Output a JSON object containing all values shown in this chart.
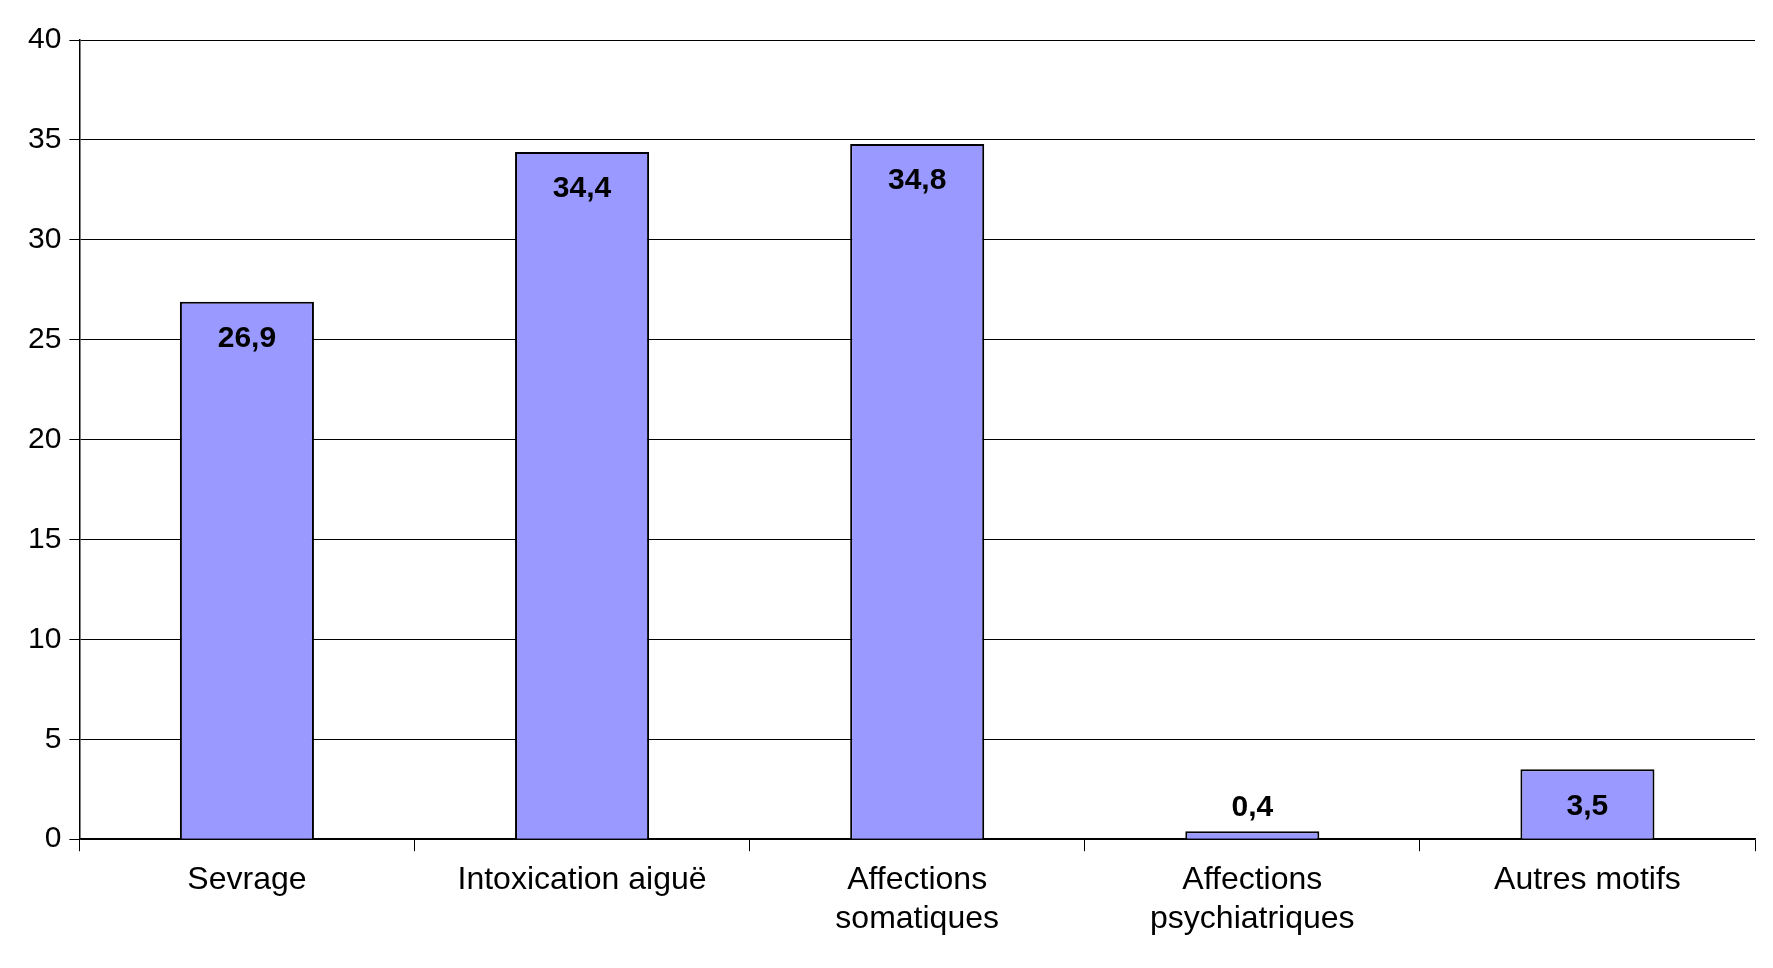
{
  "chart_data": {
    "type": "bar",
    "categories": [
      "Sevrage",
      "Intoxication aiguë",
      "Affections somatiques",
      "Affections psychiatriques",
      "Autres motifs"
    ],
    "values": [
      26.9,
      34.4,
      34.8,
      0.4,
      3.5
    ],
    "value_labels": [
      "26,9",
      "34,4",
      "34,8",
      "0,4",
      "3,5"
    ],
    "color": "#9999ff",
    "ylim": [
      0,
      40
    ],
    "yticks": [
      0,
      5,
      10,
      15,
      20,
      25,
      30,
      35,
      40
    ],
    "grid": "y",
    "legend": false
  }
}
